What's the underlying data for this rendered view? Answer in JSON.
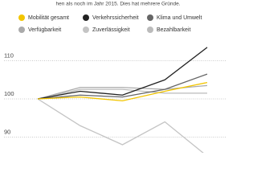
{
  "subtitle": "hen als noch im Jahr 2015. Dies hat mehrere Gründe.",
  "chart_data": {
    "type": "line",
    "categories": [
      null,
      null,
      null,
      null,
      null
    ],
    "series": [
      {
        "name": "Mobilität gesamt",
        "color": "#f2c500",
        "values": [
          100,
          100.5,
          99.5,
          102,
          104.3
        ]
      },
      {
        "name": "Verkehrssicherheit",
        "color": "#222222",
        "values": [
          100,
          102,
          101,
          105,
          113.5
        ]
      },
      {
        "name": "Klima und Umwelt",
        "color": "#666666",
        "values": [
          100,
          101,
          100.5,
          102.5,
          106.5
        ]
      },
      {
        "name": "Verfügbarkeit",
        "color": "#aaaaaa",
        "values": [
          100,
          103,
          103,
          102.5,
          103.5
        ]
      },
      {
        "name": "Zuverlässigkeit",
        "color": "#c4c4c4",
        "values": [
          100,
          93,
          88,
          94,
          85
        ]
      },
      {
        "name": "Bezahlbarkeit",
        "color": "#bbbbbb",
        "values": [
          100,
          102.5,
          102.5,
          101.5,
          101.5
        ]
      }
    ],
    "ylim": [
      86,
      115
    ],
    "yticks": [
      90,
      100,
      110
    ],
    "grid": true
  }
}
